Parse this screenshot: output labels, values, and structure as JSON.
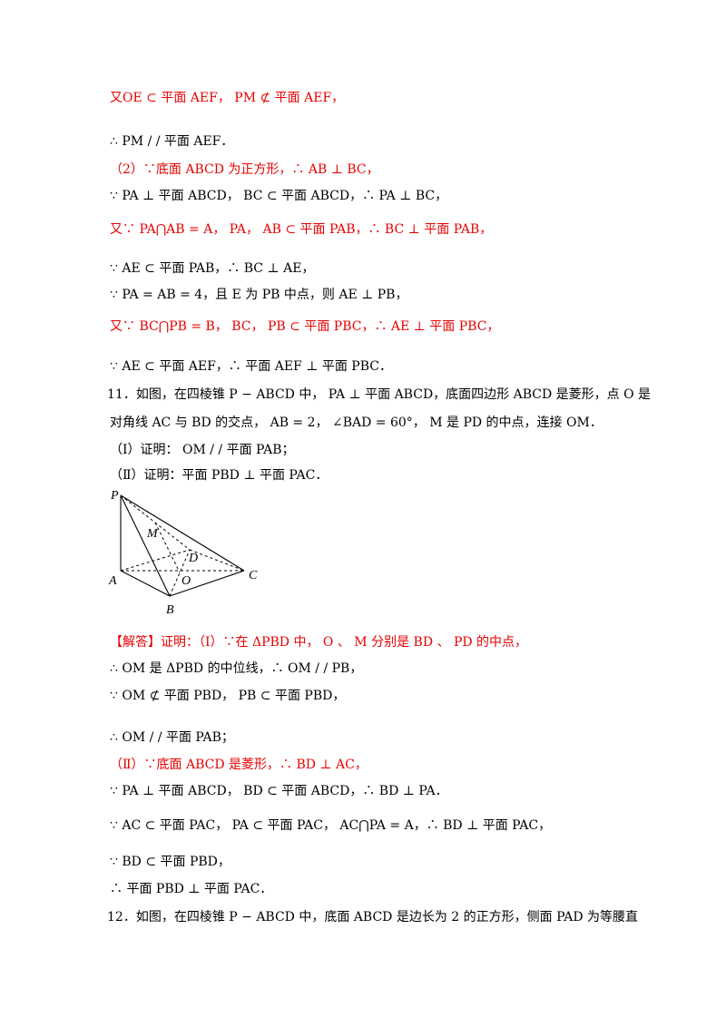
{
  "lines": {
    "l1": "又OE ⊂ 平面 AEF， PM ⊄ 平面 AEF，",
    "l2": "∴ PM / / 平面 AEF．",
    "l3": "（2）∵底面 ABCD 为正方形，∴ AB ⊥ BC，",
    "l4": "∵ PA ⊥ 平面 ABCD， BC ⊂ 平面 ABCD，∴ PA ⊥ BC，",
    "l5": "又∵ PA⋂AB = A， PA， AB ⊂ 平面 PAB，∴ BC ⊥ 平面 PAB，",
    "l6": "∵ AE ⊂ 平面 PAB，∴ BC ⊥ AE，",
    "l7": "∵ PA = AB = 4，且 E 为 PB 中点，则 AE ⊥ PB，",
    "l8": "又∵ BC⋂PB = B， BC， PB ⊂ 平面 PBC，∴ AE ⊥ 平面 PBC，",
    "l9": "∵ AE ⊂ 平面 AEF，∴ 平面 AEF ⊥ 平面 PBC．",
    "l10": "11．如图，在四棱锥 P − ABCD 中， PA ⊥ 平面 ABCD，底面四边形 ABCD 是菱形，点 O 是",
    "l11": "对角线 AC 与 BD 的交点， AB = 2， ∠BAD = 60°， M 是 PD 的中点，连接 OM．",
    "l12": "（Ⅰ）证明： OM / / 平面 PAB；",
    "l13": "（Ⅱ）证明：平面 PBD ⊥ 平面 PAC．",
    "l14": "【解答】证明：（Ⅰ）∵在 ΔPBD 中， O 、 M 分别是 BD 、 PD 的中点，",
    "l15": "∴ OM 是 ΔPBD 的中位线，∴ OM / / PB，",
    "l16": "∵ OM ⊄ 平面 PBD， PB ⊂ 平面 PBD，",
    "l17": "∴ OM / / 平面 PAB；",
    "l18": "（Ⅱ）∵底面 ABCD 是菱形，∴ BD ⊥ AC，",
    "l19": "∵ PA ⊥ 平面 ABCD， BD ⊂ 平面 ABCD，∴ BD ⊥ PA．",
    "l20": "∵ AC ⊂ 平面 PAC， PA ⊂ 平面 PAC， AC⋂PA = A，∴ BD ⊥ 平面 PAC，",
    "l21": "∵ BD ⊂ 平面 PBD，",
    "l22": "∴ 平面 PBD ⊥ 平面 PAC．",
    "l23": "12．如图，在四棱锥 P − ABCD 中，底面 ABCD 是边长为 2 的正方形，侧面 PAD 为等腰直"
  },
  "figure": {
    "labels": [
      "P",
      "M",
      "D",
      "A",
      "O",
      "C",
      "B"
    ]
  }
}
